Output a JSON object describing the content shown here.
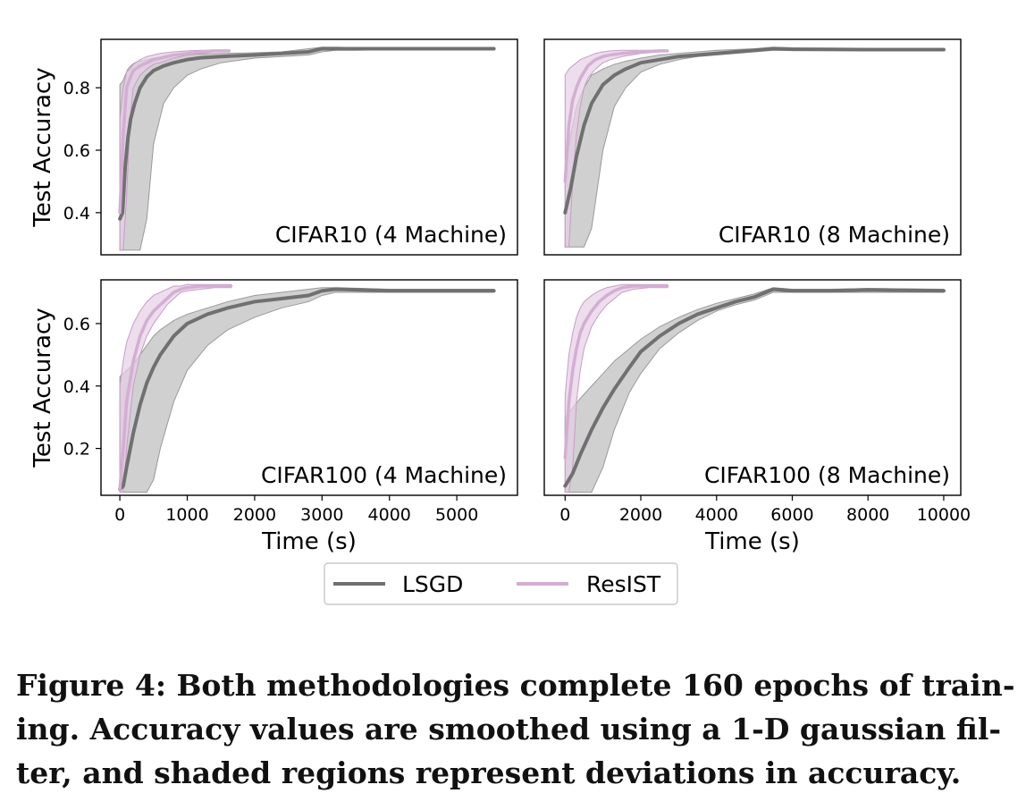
{
  "chart_data": [
    {
      "type": "line",
      "panel": "top-left",
      "annotation": "CIFAR10 (4 Machine)",
      "ylabel": "Test Accuracy",
      "xlim": [
        -280,
        5900
      ],
      "ylim": [
        0.265,
        0.955
      ],
      "yticks": [
        0.4,
        0.6,
        0.8
      ],
      "ytick_labels": [
        "0.4",
        "0.6",
        "0.8"
      ],
      "xticks": [],
      "series": [
        {
          "name": "LSGD",
          "x": [
            0,
            40,
            80,
            120,
            160,
            220,
            300,
            400,
            500,
            650,
            800,
            1000,
            1200,
            1500,
            2000,
            2400,
            2800,
            3000,
            3200,
            3500,
            4000,
            5000,
            5550
          ],
          "y": [
            0.38,
            0.4,
            0.55,
            0.64,
            0.7,
            0.75,
            0.8,
            0.835,
            0.855,
            0.87,
            0.88,
            0.89,
            0.896,
            0.9,
            0.905,
            0.91,
            0.915,
            0.925,
            0.925,
            0.925,
            0.925,
            0.925,
            0.925
          ],
          "lower": [
            0.28,
            0.28,
            0.28,
            0.28,
            0.28,
            0.28,
            0.28,
            0.38,
            0.62,
            0.75,
            0.8,
            0.84,
            0.86,
            0.88,
            0.895,
            0.9,
            0.905,
            0.915,
            0.92,
            0.92,
            0.922,
            0.923,
            0.923
          ],
          "upper": [
            0.81,
            0.82,
            0.84,
            0.86,
            0.87,
            0.88,
            0.885,
            0.89,
            0.895,
            0.9,
            0.902,
            0.905,
            0.908,
            0.91,
            0.912,
            0.915,
            0.925,
            0.93,
            0.93,
            0.928,
            0.928,
            0.928,
            0.928
          ]
        },
        {
          "name": "ResIST",
          "x": [
            0,
            50,
            100,
            150,
            200,
            300,
            400,
            500,
            600,
            800,
            1000,
            1200,
            1400,
            1620
          ],
          "y": [
            0.4,
            0.65,
            0.8,
            0.83,
            0.855,
            0.87,
            0.88,
            0.89,
            0.895,
            0.905,
            0.91,
            0.915,
            0.918,
            0.918
          ],
          "lower": [
            0.28,
            0.28,
            0.45,
            0.7,
            0.8,
            0.84,
            0.86,
            0.875,
            0.88,
            0.895,
            0.905,
            0.91,
            0.915,
            0.915
          ],
          "upper": [
            0.7,
            0.8,
            0.85,
            0.86,
            0.875,
            0.89,
            0.9,
            0.905,
            0.91,
            0.915,
            0.918,
            0.92,
            0.92,
            0.92
          ]
        }
      ]
    },
    {
      "type": "line",
      "panel": "top-right",
      "annotation": "CIFAR10 (8 Machine)",
      "ylabel": "",
      "xlim": [
        -550,
        10450
      ],
      "ylim": [
        0.265,
        0.955
      ],
      "yticks": [],
      "xticks": [],
      "series": [
        {
          "name": "LSGD",
          "x": [
            0,
            150,
            300,
            500,
            700,
            1000,
            1300,
            1600,
            2000,
            2500,
            3000,
            3500,
            4000,
            5000,
            5500,
            6000,
            8000,
            10000
          ],
          "y": [
            0.4,
            0.48,
            0.58,
            0.68,
            0.75,
            0.81,
            0.84,
            0.86,
            0.88,
            0.89,
            0.9,
            0.905,
            0.91,
            0.92,
            0.925,
            0.923,
            0.922,
            0.922
          ],
          "lower": [
            0.29,
            0.29,
            0.29,
            0.29,
            0.35,
            0.6,
            0.74,
            0.8,
            0.85,
            0.875,
            0.89,
            0.9,
            0.905,
            0.915,
            0.92,
            0.92,
            0.92,
            0.92
          ],
          "upper": [
            0.55,
            0.65,
            0.74,
            0.8,
            0.84,
            0.86,
            0.875,
            0.885,
            0.895,
            0.905,
            0.91,
            0.915,
            0.92,
            0.925,
            0.93,
            0.928,
            0.926,
            0.926
          ]
        },
        {
          "name": "ResIST",
          "x": [
            0,
            100,
            200,
            300,
            400,
            500,
            600,
            800,
            1000,
            1200,
            1500,
            2000,
            2500,
            2700
          ],
          "y": [
            0.5,
            0.68,
            0.76,
            0.8,
            0.83,
            0.85,
            0.87,
            0.89,
            0.9,
            0.905,
            0.91,
            0.915,
            0.918,
            0.918
          ],
          "lower": [
            0.29,
            0.29,
            0.5,
            0.65,
            0.74,
            0.8,
            0.83,
            0.86,
            0.88,
            0.89,
            0.9,
            0.91,
            0.915,
            0.915
          ],
          "upper": [
            0.84,
            0.86,
            0.87,
            0.88,
            0.89,
            0.895,
            0.9,
            0.91,
            0.915,
            0.918,
            0.92,
            0.92,
            0.92,
            0.92
          ]
        }
      ]
    },
    {
      "type": "line",
      "panel": "bottom-left",
      "annotation": "CIFAR100 (4 Machine)",
      "ylabel": "Test Accuracy",
      "xlabel": "Time (s)",
      "xlim": [
        -280,
        5900
      ],
      "ylim": [
        0.05,
        0.74
      ],
      "yticks": [
        0.2,
        0.4,
        0.6
      ],
      "ytick_labels": [
        "0.2",
        "0.4",
        "0.6"
      ],
      "xticks": [
        0,
        1000,
        2000,
        3000,
        4000,
        5000
      ],
      "xtick_labels": [
        "0",
        "1000",
        "2000",
        "3000",
        "4000",
        "5000"
      ],
      "series": [
        {
          "name": "LSGD",
          "x": [
            0,
            50,
            100,
            200,
            300,
            400,
            500,
            600,
            800,
            1000,
            1300,
            1600,
            2000,
            2400,
            2600,
            2800,
            3000,
            3200,
            4000,
            5000,
            5550
          ],
          "y": [
            0.07,
            0.08,
            0.14,
            0.25,
            0.34,
            0.41,
            0.46,
            0.5,
            0.56,
            0.6,
            0.63,
            0.65,
            0.67,
            0.68,
            0.685,
            0.69,
            0.705,
            0.71,
            0.705,
            0.705,
            0.705
          ],
          "lower": [
            0.06,
            0.06,
            0.06,
            0.06,
            0.06,
            0.06,
            0.1,
            0.2,
            0.35,
            0.45,
            0.53,
            0.58,
            0.62,
            0.65,
            0.66,
            0.67,
            0.69,
            0.7,
            0.7,
            0.7,
            0.7
          ],
          "upper": [
            0.43,
            0.44,
            0.45,
            0.47,
            0.5,
            0.53,
            0.56,
            0.58,
            0.61,
            0.63,
            0.65,
            0.67,
            0.69,
            0.7,
            0.705,
            0.71,
            0.715,
            0.715,
            0.71,
            0.71,
            0.71
          ]
        },
        {
          "name": "ResIST",
          "x": [
            0,
            50,
            100,
            200,
            300,
            400,
            500,
            600,
            700,
            800,
            900,
            1000,
            1200,
            1400,
            1650
          ],
          "y": [
            0.07,
            0.2,
            0.35,
            0.48,
            0.56,
            0.61,
            0.64,
            0.66,
            0.68,
            0.7,
            0.71,
            0.715,
            0.72,
            0.72,
            0.72
          ],
          "lower": [
            0.06,
            0.06,
            0.2,
            0.4,
            0.5,
            0.56,
            0.6,
            0.63,
            0.66,
            0.68,
            0.7,
            0.705,
            0.71,
            0.715,
            0.715
          ],
          "upper": [
            0.4,
            0.48,
            0.54,
            0.6,
            0.64,
            0.67,
            0.69,
            0.7,
            0.71,
            0.72,
            0.72,
            0.725,
            0.725,
            0.725,
            0.725
          ]
        }
      ]
    },
    {
      "type": "line",
      "panel": "bottom-right",
      "annotation": "CIFAR100 (8 Machine)",
      "ylabel": "",
      "xlabel": "Time (s)",
      "xlim": [
        -550,
        10450
      ],
      "ylim": [
        0.05,
        0.74
      ],
      "yticks": [],
      "xticks": [
        0,
        2000,
        4000,
        6000,
        8000,
        10000
      ],
      "xtick_labels": [
        "0",
        "2000",
        "4000",
        "6000",
        "8000",
        "10000"
      ],
      "series": [
        {
          "name": "LSGD",
          "x": [
            0,
            200,
            400,
            700,
            1000,
            1300,
            1700,
            2000,
            2500,
            3000,
            3500,
            4000,
            4500,
            5000,
            5500,
            6000,
            7000,
            8000,
            10000
          ],
          "y": [
            0.08,
            0.12,
            0.18,
            0.26,
            0.33,
            0.39,
            0.46,
            0.51,
            0.56,
            0.6,
            0.63,
            0.65,
            0.67,
            0.685,
            0.71,
            0.705,
            0.705,
            0.708,
            0.705
          ],
          "lower": [
            0.06,
            0.06,
            0.06,
            0.06,
            0.14,
            0.26,
            0.38,
            0.44,
            0.52,
            0.57,
            0.61,
            0.64,
            0.66,
            0.675,
            0.7,
            0.7,
            0.7,
            0.7,
            0.7
          ],
          "upper": [
            0.3,
            0.33,
            0.36,
            0.4,
            0.44,
            0.48,
            0.52,
            0.55,
            0.59,
            0.62,
            0.645,
            0.665,
            0.68,
            0.695,
            0.715,
            0.71,
            0.71,
            0.712,
            0.71
          ],
          "stroke": "#707070"
        },
        {
          "name": "ResIST",
          "x": [
            0,
            100,
            200,
            300,
            400,
            500,
            700,
            900,
            1100,
            1300,
            1500,
            1800,
            2200,
            2700
          ],
          "y": [
            0.17,
            0.35,
            0.45,
            0.52,
            0.57,
            0.6,
            0.64,
            0.67,
            0.69,
            0.705,
            0.715,
            0.72,
            0.72,
            0.72
          ],
          "lower": [
            0.06,
            0.06,
            0.14,
            0.35,
            0.45,
            0.52,
            0.59,
            0.63,
            0.66,
            0.68,
            0.7,
            0.71,
            0.715,
            0.715
          ],
          "upper": [
            0.37,
            0.5,
            0.57,
            0.62,
            0.65,
            0.67,
            0.69,
            0.705,
            0.715,
            0.72,
            0.725,
            0.725,
            0.725,
            0.725
          ]
        }
      ]
    }
  ],
  "legend": {
    "placement": "bottom-center",
    "items": [
      {
        "name": "LSGD",
        "color": "#707070"
      },
      {
        "name": "ResIST",
        "color": "#d3aed3"
      }
    ]
  },
  "colors": {
    "LSGD_line": "#707070",
    "LSGD_band": "#c8c8c8",
    "ResIST_line": "#d3aed3",
    "ResIST_band": "#e6cfe6"
  },
  "caption": {
    "lines": [
      "Figure 4: Both methodologies complete 160 epochs of train-",
      "ing. Accuracy values are smoothed using a 1-D gaussian fil-",
      "ter, and shaded regions represent deviations in accuracy."
    ]
  }
}
